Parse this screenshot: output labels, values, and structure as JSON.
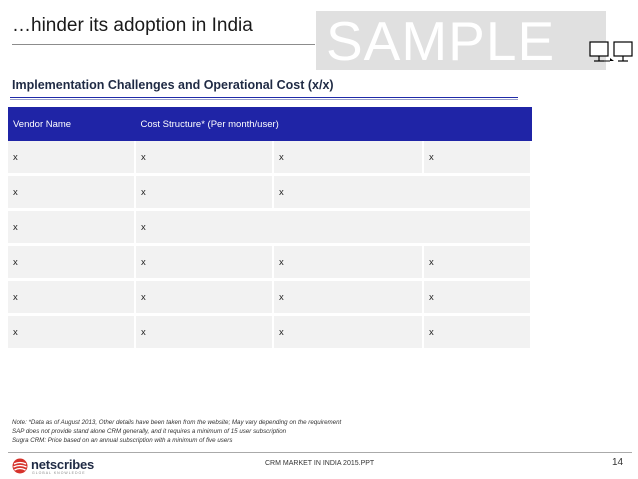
{
  "slide": {
    "title": "…hinder its adoption in India",
    "watermark": "SAMPLE",
    "subtitle": "Implementation Challenges and Operational Cost (x/x)"
  },
  "table": {
    "headers": [
      "Vendor Name",
      "Cost Structure* (Per month/user)"
    ],
    "rows": [
      [
        "x",
        "x",
        "x",
        "x"
      ],
      [
        "x",
        "x",
        "x"
      ],
      [
        "x",
        "x"
      ],
      [
        "x",
        "x",
        "x",
        "x"
      ],
      [
        "x",
        "x",
        "x",
        "x"
      ],
      [
        "x",
        "x",
        "x",
        "x"
      ]
    ]
  },
  "notes": [
    "Note: *Data as of August 2013, Other details have been taken from the website; May vary depending on the requirement",
    "SAP does not provide stand alone CRM generally, and it requires a minimum of 15 user subscription",
    "Sugra CRM: Price based on an annual subscription with a minimum of five users"
  ],
  "footer": {
    "logo_text": "netscribes",
    "logo_tagline": "GLOBAL KNOWLEDGE",
    "center_text": "CRM MARKET IN INDIA 2015.PPT",
    "page_number": "14"
  },
  "colors": {
    "header_blue": "#1f24a6",
    "cell_gray": "#f2f2f2",
    "logo_red": "#d6322b"
  }
}
